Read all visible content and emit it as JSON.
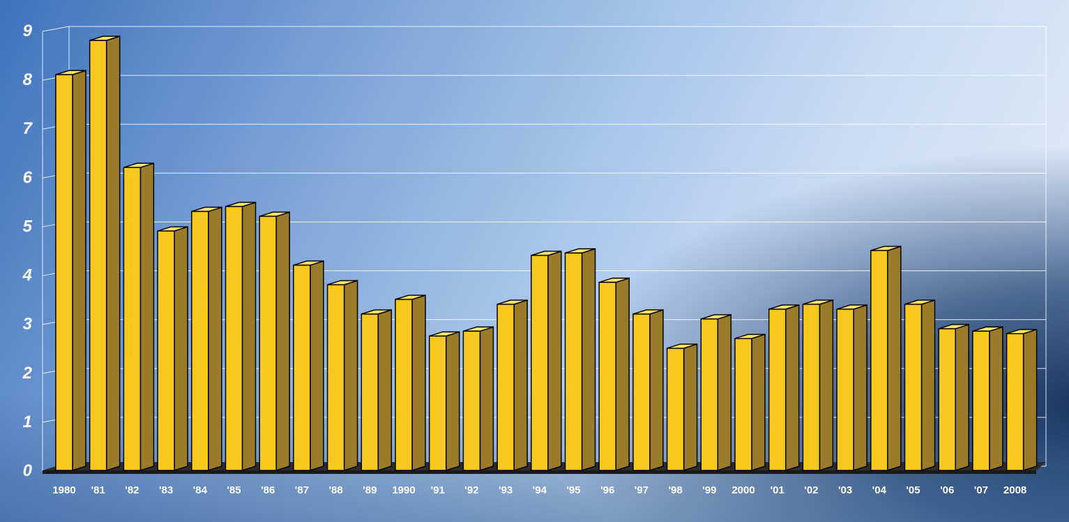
{
  "chart_data": {
    "type": "bar",
    "categories": [
      "1980",
      "'81",
      "'82",
      "'83",
      "'84",
      "'85",
      "'86",
      "'87",
      "'88",
      "'89",
      "1990",
      "'91",
      "'92",
      "'93",
      "'94",
      "'95",
      "'96",
      "'97",
      "'98",
      "'99",
      "2000",
      "'01",
      "'02",
      "'03",
      "'04",
      "'05",
      "'06",
      "'07",
      "2008"
    ],
    "values": [
      8.1,
      8.8,
      6.2,
      4.9,
      5.3,
      5.4,
      5.2,
      4.2,
      3.8,
      3.2,
      3.5,
      2.75,
      2.85,
      3.4,
      4.4,
      4.45,
      3.85,
      3.2,
      2.5,
      3.1,
      2.7,
      3.3,
      3.4,
      3.3,
      4.5,
      3.4,
      2.9,
      2.85,
      2.8
    ],
    "y_ticks": [
      "0",
      "1",
      "2",
      "3",
      "4",
      "5",
      "6",
      "7",
      "8",
      "9"
    ],
    "ylim": [
      0,
      9
    ],
    "grid": true,
    "title": "",
    "xlabel": "",
    "ylabel": "",
    "colors": {
      "bar_front": "#f7c81e",
      "bar_side": "#9a7b2a",
      "bar_top": "#ffe46a",
      "floor": "#2c2c2c",
      "gridline": "#ffffff",
      "label": "#ffffff"
    }
  }
}
